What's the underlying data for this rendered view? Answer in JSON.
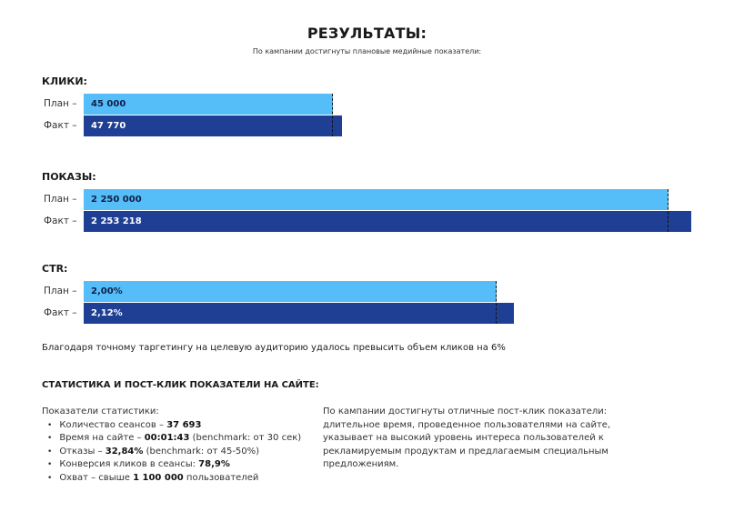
{
  "title": "РЕЗУЛЬТАТЫ:",
  "subtitle": "По кампании достигнуты плановые медийные показатели:",
  "colors": {
    "plan": "#55bdf7",
    "fact": "#1e3f93"
  },
  "metrics": [
    {
      "heading": "КЛИКИ:",
      "plan_label": "План –",
      "fact_label": "Факт –",
      "plan_value": 45000,
      "fact_value": 47770,
      "plan_text": "45 000",
      "fact_text": "47 770"
    },
    {
      "heading": "ПОКАЗЫ:",
      "plan_label": "План –",
      "fact_label": "Факт –",
      "plan_value": 2250000,
      "fact_value": 2253218,
      "plan_text": "2 250 000",
      "fact_text": "2 253 218"
    },
    {
      "heading": "CTR:",
      "plan_label": "План –",
      "fact_label": "Факт –",
      "plan_value": 2.0,
      "fact_value": 2.12,
      "plan_text": "2,00%",
      "fact_text": "2,12%"
    }
  ],
  "note": "Благодаря точному таргетингу на целевую аудиторию удалось превысить объем кликов на 6%",
  "stats_heading": "СТАТИСТИКА И ПОСТ-КЛИК ПОКАЗАТЕЛИ НА САЙТЕ:",
  "stats": {
    "intro": "Показатели статистики:",
    "items": [
      {
        "pre": "Количество  сеансов – ",
        "bold": "37 693",
        "post": ""
      },
      {
        "pre": "Время на сайте – ",
        "bold": "00:01:43",
        "post": " (benchmark: от 30 сек)"
      },
      {
        "pre": "Отказы – ",
        "bold": "32,84%",
        "post": " (benchmark: от 45-50%)"
      },
      {
        "pre": "Конверсия кликов в сеансы: ",
        "bold": "78,9%",
        "post": ""
      },
      {
        "pre": "Охват – свыше ",
        "bold": "1 100 000",
        "post": " пользователей"
      }
    ]
  },
  "post_click_text": "По кампании достигнуты отличные пост-клик показатели: длительное время, проведенное пользователями на сайте, указывает на высокий уровень интереса пользователей к рекламируемым продуктам и предлагаемым специальным предложениям."
}
